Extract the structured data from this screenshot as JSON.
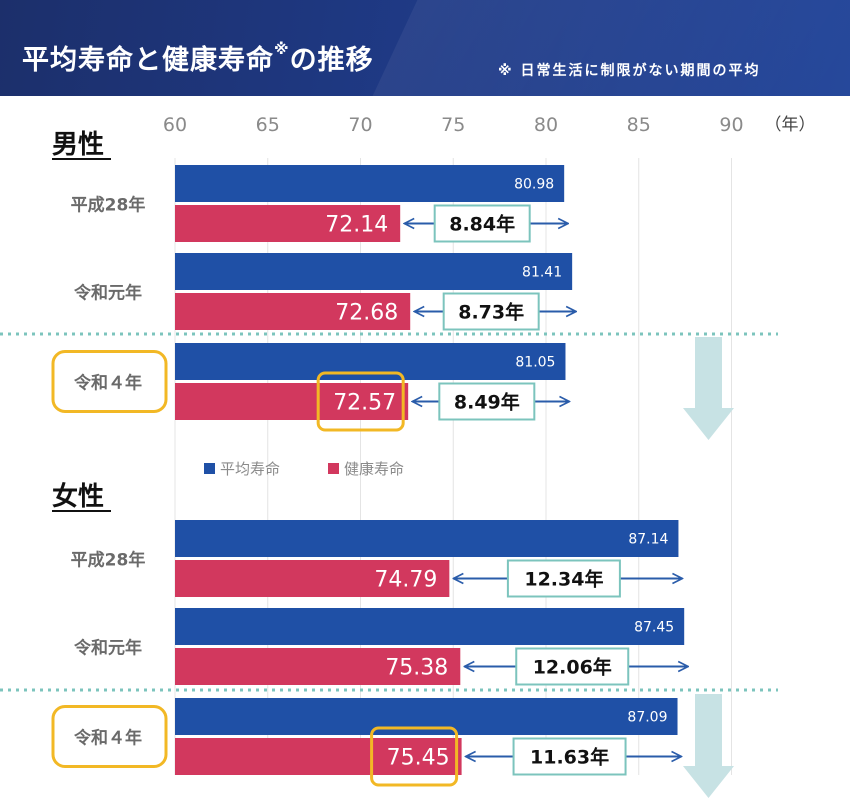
{
  "header": {
    "title": "平均寿命と健康寿命",
    "title_mark": "※",
    "title_suffix": "の推移",
    "note": "※ 日常生活に制限がない期間の平均"
  },
  "colors": {
    "header_bg": "#1f3a86",
    "avg_bar": "#1f50a6",
    "healthy_bar": "#d2385e",
    "gap_box_border": "#7cc4bd",
    "highlight": "#f2b825",
    "arrow": "#2a5caa",
    "down_arrow": "#c7e2e4",
    "divider": "#7cc4bd"
  },
  "chart_data": {
    "type": "bar",
    "orientation": "horizontal",
    "x_ticks": [
      60,
      65,
      70,
      75,
      80,
      85,
      90
    ],
    "x_unit": "（年）",
    "xlim": [
      60,
      90
    ],
    "legend": [
      "平均寿命",
      "健康寿命"
    ],
    "groups": [
      {
        "name": "男性",
        "rows": [
          {
            "label": "平成28年",
            "avg": 80.98,
            "avg_label": "80.98",
            "healthy": 72.14,
            "healthy_label": "72.14",
            "gap": "8.84年",
            "highlight": false
          },
          {
            "label": "令和元年",
            "avg": 81.41,
            "avg_label": "81.41",
            "healthy": 72.68,
            "healthy_label": "72.68",
            "gap": "8.73年",
            "highlight": false
          },
          {
            "label": "令和４年",
            "avg": 81.05,
            "avg_label": "81.05",
            "healthy": 72.57,
            "healthy_label": "72.57",
            "gap": "8.49年",
            "highlight": true
          }
        ]
      },
      {
        "name": "女性",
        "rows": [
          {
            "label": "平成28年",
            "avg": 87.14,
            "avg_label": "87.14",
            "healthy": 74.79,
            "healthy_label": "74.79",
            "gap": "12.34年",
            "highlight": false
          },
          {
            "label": "令和元年",
            "avg": 87.45,
            "avg_label": "87.45",
            "healthy": 75.38,
            "healthy_label": "75.38",
            "gap": "12.06年",
            "highlight": false
          },
          {
            "label": "令和４年",
            "avg": 87.09,
            "avg_label": "87.09",
            "healthy": 75.45,
            "healthy_label": "75.45",
            "gap": "11.63年",
            "highlight": true
          }
        ]
      }
    ]
  }
}
